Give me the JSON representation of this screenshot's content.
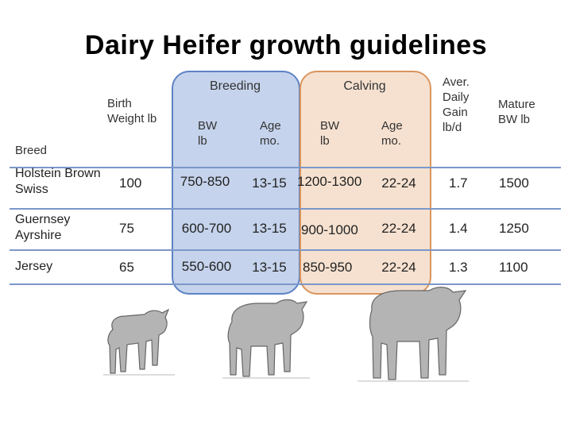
{
  "title": "Dairy Heifer growth guidelines",
  "groups": {
    "breeding": "Breeding",
    "calving": "Calving"
  },
  "headers": {
    "breed": "Breed",
    "birth_weight": "Birth Weight lb",
    "breeding_bw": "BW lb",
    "breeding_age": "Age mo.",
    "calving_bw": "BW lb",
    "calving_age": "Age mo.",
    "daily_gain": "Aver. Daily Gain lb/d",
    "mature_bw": "Mature BW lb"
  },
  "rows": [
    {
      "breed": "Holstein Brown Swiss",
      "birth_weight": "100",
      "breeding_bw": "750-850",
      "breeding_age": "13-15",
      "calving_bw": "1200-1300",
      "calving_age": "22-24",
      "daily_gain": "1.7",
      "mature_bw": "1500"
    },
    {
      "breed": "Guernsey Ayrshire",
      "birth_weight": "75",
      "breeding_bw": "600-700",
      "breeding_age": "13-15",
      "calving_bw": "900-1000",
      "calving_age": "22-24",
      "daily_gain": "1.4",
      "mature_bw": "1250"
    },
    {
      "breed": "Jersey",
      "birth_weight": "65",
      "breeding_bw": "550-600",
      "breeding_age": "13-15",
      "calving_bw": "850-950",
      "calving_age": "22-24",
      "daily_gain": "1.3",
      "mature_bw": "1100"
    }
  ],
  "colors": {
    "breeding_fill": "#a9bde3",
    "breeding_border": "#5e82c4",
    "calving_fill": "#f1d5bf",
    "calving_border": "#d9955e",
    "rule": "#7b97c9",
    "animal": "#b4b4b4"
  }
}
